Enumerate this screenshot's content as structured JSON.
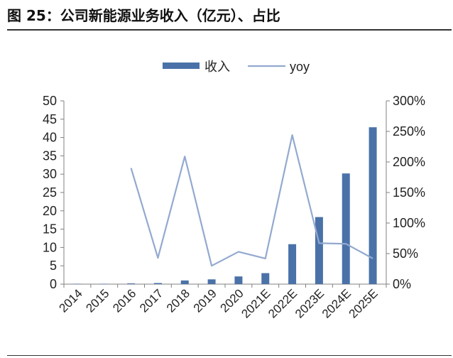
{
  "figure_title": "图 25：公司新能源业务收入（亿元）、占比",
  "chart_data": {
    "type": "bar",
    "categories": [
      "2014",
      "2015",
      "2016",
      "2017",
      "2018",
      "2019",
      "2020",
      "2021E",
      "2022E",
      "2023E",
      "2024E",
      "2025E"
    ],
    "series": [
      {
        "name": "收入",
        "type": "bar",
        "axis": "left",
        "values": [
          0.1,
          0.1,
          0.2,
          0.3,
          1.0,
          1.3,
          2.1,
          3.0,
          10.9,
          18.3,
          30.2,
          42.8
        ]
      },
      {
        "name": "yoy",
        "type": "line",
        "axis": "right",
        "values": [
          null,
          null,
          190,
          43,
          209,
          30,
          53,
          42,
          244,
          67,
          66,
          42
        ]
      }
    ],
    "ylim": [
      0,
      50
    ],
    "yticks": [
      "0",
      "5",
      "10",
      "15",
      "20",
      "25",
      "30",
      "35",
      "40",
      "45",
      "50"
    ],
    "y2lim": [
      0,
      300
    ],
    "y2ticks": [
      "0%",
      "50%",
      "100%",
      "150%",
      "200%",
      "250%",
      "300%"
    ],
    "legend_position": "top-center",
    "colors": {
      "bar": "#4a72a8",
      "line": "#93a9cf",
      "axis": "#808080"
    }
  }
}
